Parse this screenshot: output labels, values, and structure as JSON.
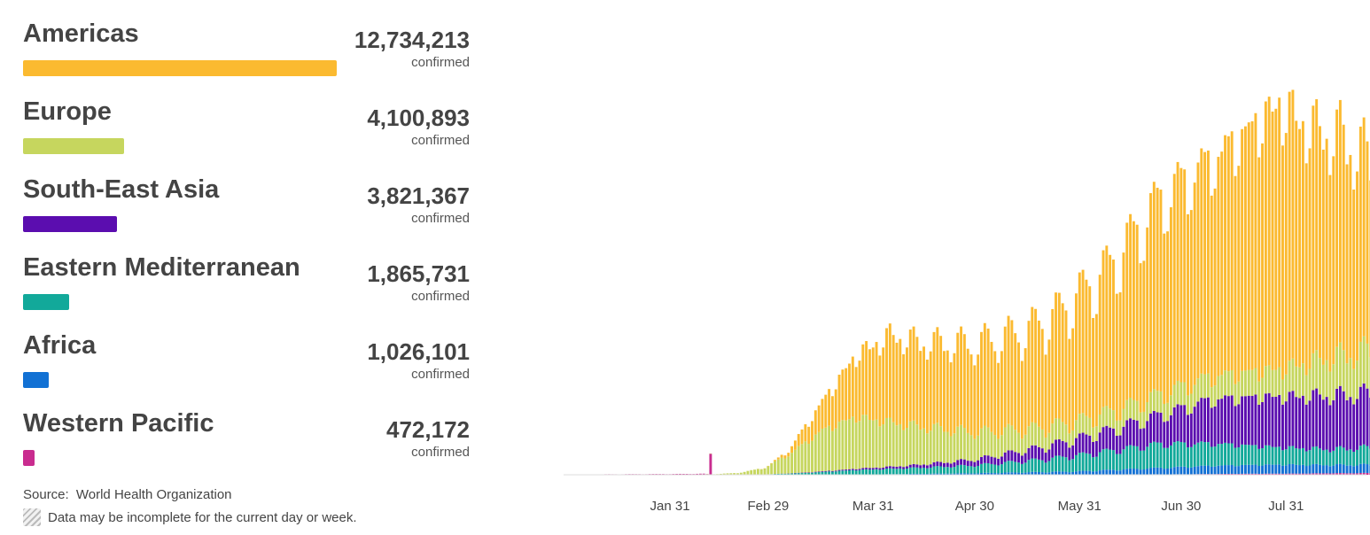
{
  "regions": [
    {
      "name": "Americas",
      "value": "12,734,213",
      "unit": "confirmed",
      "color": "#FBBA30",
      "share": 1.0
    },
    {
      "name": "Europe",
      "value": "4,100,893",
      "unit": "confirmed",
      "color": "#C6D65E",
      "share": 0.322
    },
    {
      "name": "South-East Asia",
      "value": "3,821,367",
      "unit": "confirmed",
      "color": "#5B0DAF",
      "share": 0.3
    },
    {
      "name": "Eastern Mediterranean",
      "value": "1,865,731",
      "unit": "confirmed",
      "color": "#12A99A",
      "share": 0.147
    },
    {
      "name": "Africa",
      "value": "1,026,101",
      "unit": "confirmed",
      "color": "#1271D4",
      "share": 0.081
    },
    {
      "name": "Western Pacific",
      "value": "472,172",
      "unit": "confirmed",
      "color": "#C92C8F",
      "share": 0.037
    }
  ],
  "source": {
    "label": "Source:",
    "text": "World Health Organization"
  },
  "note": "Data may be incomplete for the current day or week.",
  "chart_data": {
    "type": "bar",
    "stacked": true,
    "date_range": [
      "2020-01-01",
      "2020-08-26"
    ],
    "x_tick_labels": [
      "Jan 31",
      "Feb 29",
      "Mar 31",
      "Apr 30",
      "May 31",
      "Jun 30",
      "Jul 31"
    ],
    "series": [
      {
        "name": "Western Pacific",
        "color": "#C92C8F",
        "anchors": [
          [
            0,
            0
          ],
          [
            12,
            60
          ],
          [
            30,
            90
          ],
          [
            40,
            120
          ],
          [
            43,
            15
          ],
          [
            60,
            10
          ],
          [
            100,
            30
          ],
          [
            140,
            40
          ],
          [
            180,
            60
          ],
          [
            200,
            120
          ],
          [
            215,
            140
          ],
          [
            224,
            180
          ],
          [
            238,
            210
          ]
        ],
        "spikes": [
          [
            42,
            2600
          ]
        ]
      },
      {
        "name": "Africa",
        "color": "#1271D4",
        "anchors": [
          [
            0,
            0
          ],
          [
            70,
            0
          ],
          [
            90,
            20
          ],
          [
            120,
            150
          ],
          [
            150,
            350
          ],
          [
            170,
            700
          ],
          [
            190,
            1000
          ],
          [
            210,
            1100
          ],
          [
            225,
            1000
          ],
          [
            238,
            1000
          ]
        ]
      },
      {
        "name": "Eastern Mediterranean",
        "color": "#12A99A",
        "anchors": [
          [
            0,
            0
          ],
          [
            55,
            0
          ],
          [
            70,
            200
          ],
          [
            85,
            550
          ],
          [
            100,
            700
          ],
          [
            120,
            950
          ],
          [
            140,
            1500
          ],
          [
            160,
            2300
          ],
          [
            175,
            2900
          ],
          [
            190,
            2700
          ],
          [
            210,
            2100
          ],
          [
            225,
            1900
          ],
          [
            238,
            2100
          ]
        ]
      },
      {
        "name": "South-East Asia",
        "color": "#5B0DAF",
        "anchors": [
          [
            0,
            0
          ],
          [
            60,
            0
          ],
          [
            80,
            100
          ],
          [
            100,
            300
          ],
          [
            120,
            700
          ],
          [
            140,
            1500
          ],
          [
            160,
            2500
          ],
          [
            175,
            3500
          ],
          [
            190,
            5300
          ],
          [
            205,
            6000
          ],
          [
            220,
            6400
          ],
          [
            232,
            6600
          ],
          [
            238,
            6500
          ]
        ]
      },
      {
        "name": "Europe",
        "color": "#C6D65E",
        "anchors": [
          [
            0,
            0
          ],
          [
            40,
            0
          ],
          [
            50,
            200
          ],
          [
            58,
            800
          ],
          [
            66,
            2500
          ],
          [
            75,
            5000
          ],
          [
            85,
            6300
          ],
          [
            95,
            5400
          ],
          [
            105,
            4500
          ],
          [
            120,
            3300
          ],
          [
            135,
            2500
          ],
          [
            150,
            2100
          ],
          [
            165,
            2200
          ],
          [
            180,
            2600
          ],
          [
            195,
            2900
          ],
          [
            210,
            3300
          ],
          [
            225,
            4600
          ],
          [
            238,
            5200
          ]
        ]
      },
      {
        "name": "Americas",
        "color": "#FBBA30",
        "anchors": [
          [
            0,
            0
          ],
          [
            55,
            0
          ],
          [
            60,
            50
          ],
          [
            65,
            500
          ],
          [
            75,
            3500
          ],
          [
            85,
            7500
          ],
          [
            95,
            10500
          ],
          [
            105,
            10200
          ],
          [
            120,
            10600
          ],
          [
            135,
            11800
          ],
          [
            145,
            13500
          ],
          [
            160,
            17500
          ],
          [
            175,
            23500
          ],
          [
            190,
            26000
          ],
          [
            200,
            29000
          ],
          [
            210,
            32000
          ],
          [
            220,
            28000
          ],
          [
            230,
            26000
          ],
          [
            238,
            22000
          ]
        ]
      }
    ],
    "incomplete_last_bar": true,
    "y_max": 56000
  }
}
